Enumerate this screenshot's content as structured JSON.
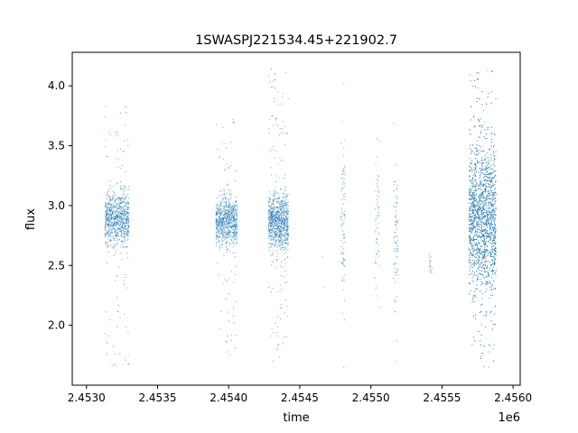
{
  "chart_data": {
    "type": "scatter",
    "title": "1SWASPJ221534.45+221902.7",
    "xlabel": "time",
    "ylabel": "flux",
    "x_offset_label": "1e6",
    "xlim": [
      2.4529,
      2.45605
    ],
    "ylim": [
      1.5,
      4.28
    ],
    "grid": false,
    "legend": "none",
    "marker_color": "#1f77b4",
    "x_ticks": [
      {
        "value": 2.453,
        "label": "2.4530"
      },
      {
        "value": 2.4535,
        "label": "2.4535"
      },
      {
        "value": 2.454,
        "label": "2.4540"
      },
      {
        "value": 2.4545,
        "label": "2.4545"
      },
      {
        "value": 2.455,
        "label": "2.4550"
      },
      {
        "value": 2.4555,
        "label": "2.4555"
      },
      {
        "value": 2.456,
        "label": "2.4560"
      }
    ],
    "y_ticks": [
      {
        "value": 2.0,
        "label": "2.0"
      },
      {
        "value": 2.5,
        "label": "2.5"
      },
      {
        "value": 3.0,
        "label": "3.0"
      },
      {
        "value": 3.5,
        "label": "3.5"
      },
      {
        "value": 4.0,
        "label": "4.0"
      }
    ],
    "series": [
      {
        "values": [
          {
            "x": 2.45317,
            "y": 2.93
          },
          {
            "x": 2.45319,
            "y": 2.81
          },
          {
            "x": 2.4532,
            "y": 3.05
          },
          {
            "x": 2.45322,
            "y": 2.72
          },
          {
            "x": 2.45323,
            "y": 2.98
          },
          {
            "x": 2.45324,
            "y": 3.2
          },
          {
            "x": 2.45325,
            "y": 2.55
          },
          {
            "x": 2.45326,
            "y": 3.45
          },
          {
            "x": 2.45327,
            "y": 2.4
          },
          {
            "x": 2.45328,
            "y": 3.82
          },
          {
            "x": 2.45318,
            "y": 1.66
          },
          {
            "x": 2.4533,
            "y": 1.68
          },
          {
            "x": 2.45395,
            "y": 2.87
          },
          {
            "x": 2.45397,
            "y": 3.1
          },
          {
            "x": 2.45399,
            "y": 2.64
          },
          {
            "x": 2.454,
            "y": 3.31
          },
          {
            "x": 2.45402,
            "y": 2.45
          },
          {
            "x": 2.45403,
            "y": 3.72
          },
          {
            "x": 2.45401,
            "y": 1.75
          },
          {
            "x": 2.45405,
            "y": 2.2
          },
          {
            "x": 2.4543,
            "y": 2.85
          },
          {
            "x": 2.45433,
            "y": 3.15
          },
          {
            "x": 2.45435,
            "y": 2.6
          },
          {
            "x": 2.45436,
            "y": 3.4
          },
          {
            "x": 2.45437,
            "y": 2.3
          },
          {
            "x": 2.45438,
            "y": 3.7
          },
          {
            "x": 2.4543,
            "y": 4.14
          },
          {
            "x": 2.45431,
            "y": 1.7
          },
          {
            "x": 2.4544,
            "y": 2.21
          },
          {
            "x": 2.45466,
            "y": 2.57
          },
          {
            "x": 2.45467,
            "y": 2.32
          },
          {
            "x": 2.4548,
            "y": 3.7
          },
          {
            "x": 2.45481,
            "y": 4.02
          },
          {
            "x": 2.4548,
            "y": 2.85
          },
          {
            "x": 2.4548,
            "y": 2.1
          },
          {
            "x": 2.45481,
            "y": 1.65
          },
          {
            "x": 2.45504,
            "y": 3.56
          },
          {
            "x": 2.45505,
            "y": 3.25
          },
          {
            "x": 2.45505,
            "y": 2.9
          },
          {
            "x": 2.45506,
            "y": 2.5
          },
          {
            "x": 2.45506,
            "y": 2.15
          },
          {
            "x": 2.45516,
            "y": 3.69
          },
          {
            "x": 2.45517,
            "y": 3.2
          },
          {
            "x": 2.45517,
            "y": 2.7
          },
          {
            "x": 2.45518,
            "y": 2.2
          },
          {
            "x": 2.45518,
            "y": 1.7
          },
          {
            "x": 2.45541,
            "y": 2.58
          },
          {
            "x": 2.45542,
            "y": 2.44
          },
          {
            "x": 2.45577,
            "y": 2.9
          },
          {
            "x": 2.45578,
            "y": 3.3
          },
          {
            "x": 2.45579,
            "y": 2.5
          },
          {
            "x": 2.4558,
            "y": 3.7
          },
          {
            "x": 2.45581,
            "y": 2.1
          },
          {
            "x": 2.45582,
            "y": 4.13
          },
          {
            "x": 2.45583,
            "y": 1.65
          },
          {
            "x": 2.45585,
            "y": 3.95
          },
          {
            "x": 2.45586,
            "y": 1.8
          }
        ],
        "clusters": [
          {
            "x_range": [
              2.45313,
              2.4533
            ],
            "y_center": 2.89,
            "spread": 0.16,
            "outlier_range": [
              1.66,
              3.84
            ],
            "count": 900
          },
          {
            "x_range": [
              2.45391,
              2.45406
            ],
            "y_center": 2.87,
            "spread": 0.14,
            "outlier_range": [
              1.75,
              3.72
            ],
            "count": 800
          },
          {
            "x_range": [
              2.45428,
              2.45442
            ],
            "y_center": 2.87,
            "spread": 0.17,
            "outlier_range": [
              1.7,
              4.14
            ],
            "count": 1000
          },
          {
            "x_range": [
              2.45479,
              2.45482
            ],
            "y_center": 2.9,
            "spread": 0.45,
            "outlier_range": [
              1.65,
              4.02
            ],
            "count": 90
          },
          {
            "x_range": [
              2.45503,
              2.45506
            ],
            "y_center": 2.85,
            "spread": 0.35,
            "outlier_range": [
              2.05,
              3.56
            ],
            "count": 55
          },
          {
            "x_range": [
              2.45516,
              2.45519
            ],
            "y_center": 2.75,
            "spread": 0.45,
            "outlier_range": [
              1.7,
              3.69
            ],
            "count": 75
          },
          {
            "x_range": [
              2.45541,
              2.45543
            ],
            "y_center": 2.5,
            "spread": 0.07,
            "outlier_range": [
              2.4,
              2.6
            ],
            "count": 15
          },
          {
            "x_range": [
              2.45569,
              2.45588
            ],
            "y_center": 2.9,
            "spread": 0.42,
            "outlier_range": [
              1.62,
              4.15
            ],
            "count": 3200
          }
        ]
      }
    ]
  }
}
